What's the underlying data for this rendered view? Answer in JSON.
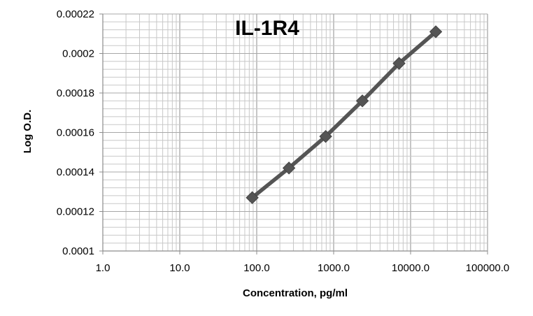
{
  "chart_data": {
    "type": "line",
    "title": "IL-1R4",
    "xlabel": "Concentration,  pg/ml",
    "ylabel": "Log O.D.",
    "x_scale": "log",
    "xlim": [
      1,
      100000
    ],
    "ylim": [
      0.0001,
      0.00022
    ],
    "x_tick_labels": [
      "1.0",
      "10.0",
      "100.0",
      "1000.0",
      "10000.0",
      "100000.0"
    ],
    "y_tick_labels": [
      "0.0001",
      "0.00012",
      "0.00014",
      "0.00016",
      "0.00018",
      "0.0002",
      "0.00022"
    ],
    "grid": true,
    "series": [
      {
        "x": [
          87.5,
          262.5,
          787.5,
          2362.5,
          7087.5,
          21262.5
        ],
        "y": [
          0.000127,
          0.000142,
          0.000158,
          0.000176,
          0.000195,
          0.000211
        ]
      }
    ],
    "colors": {
      "series": "#555555",
      "marker": "#555555",
      "grid": "#c8c8c8",
      "axis": "#8c8c8c"
    }
  }
}
